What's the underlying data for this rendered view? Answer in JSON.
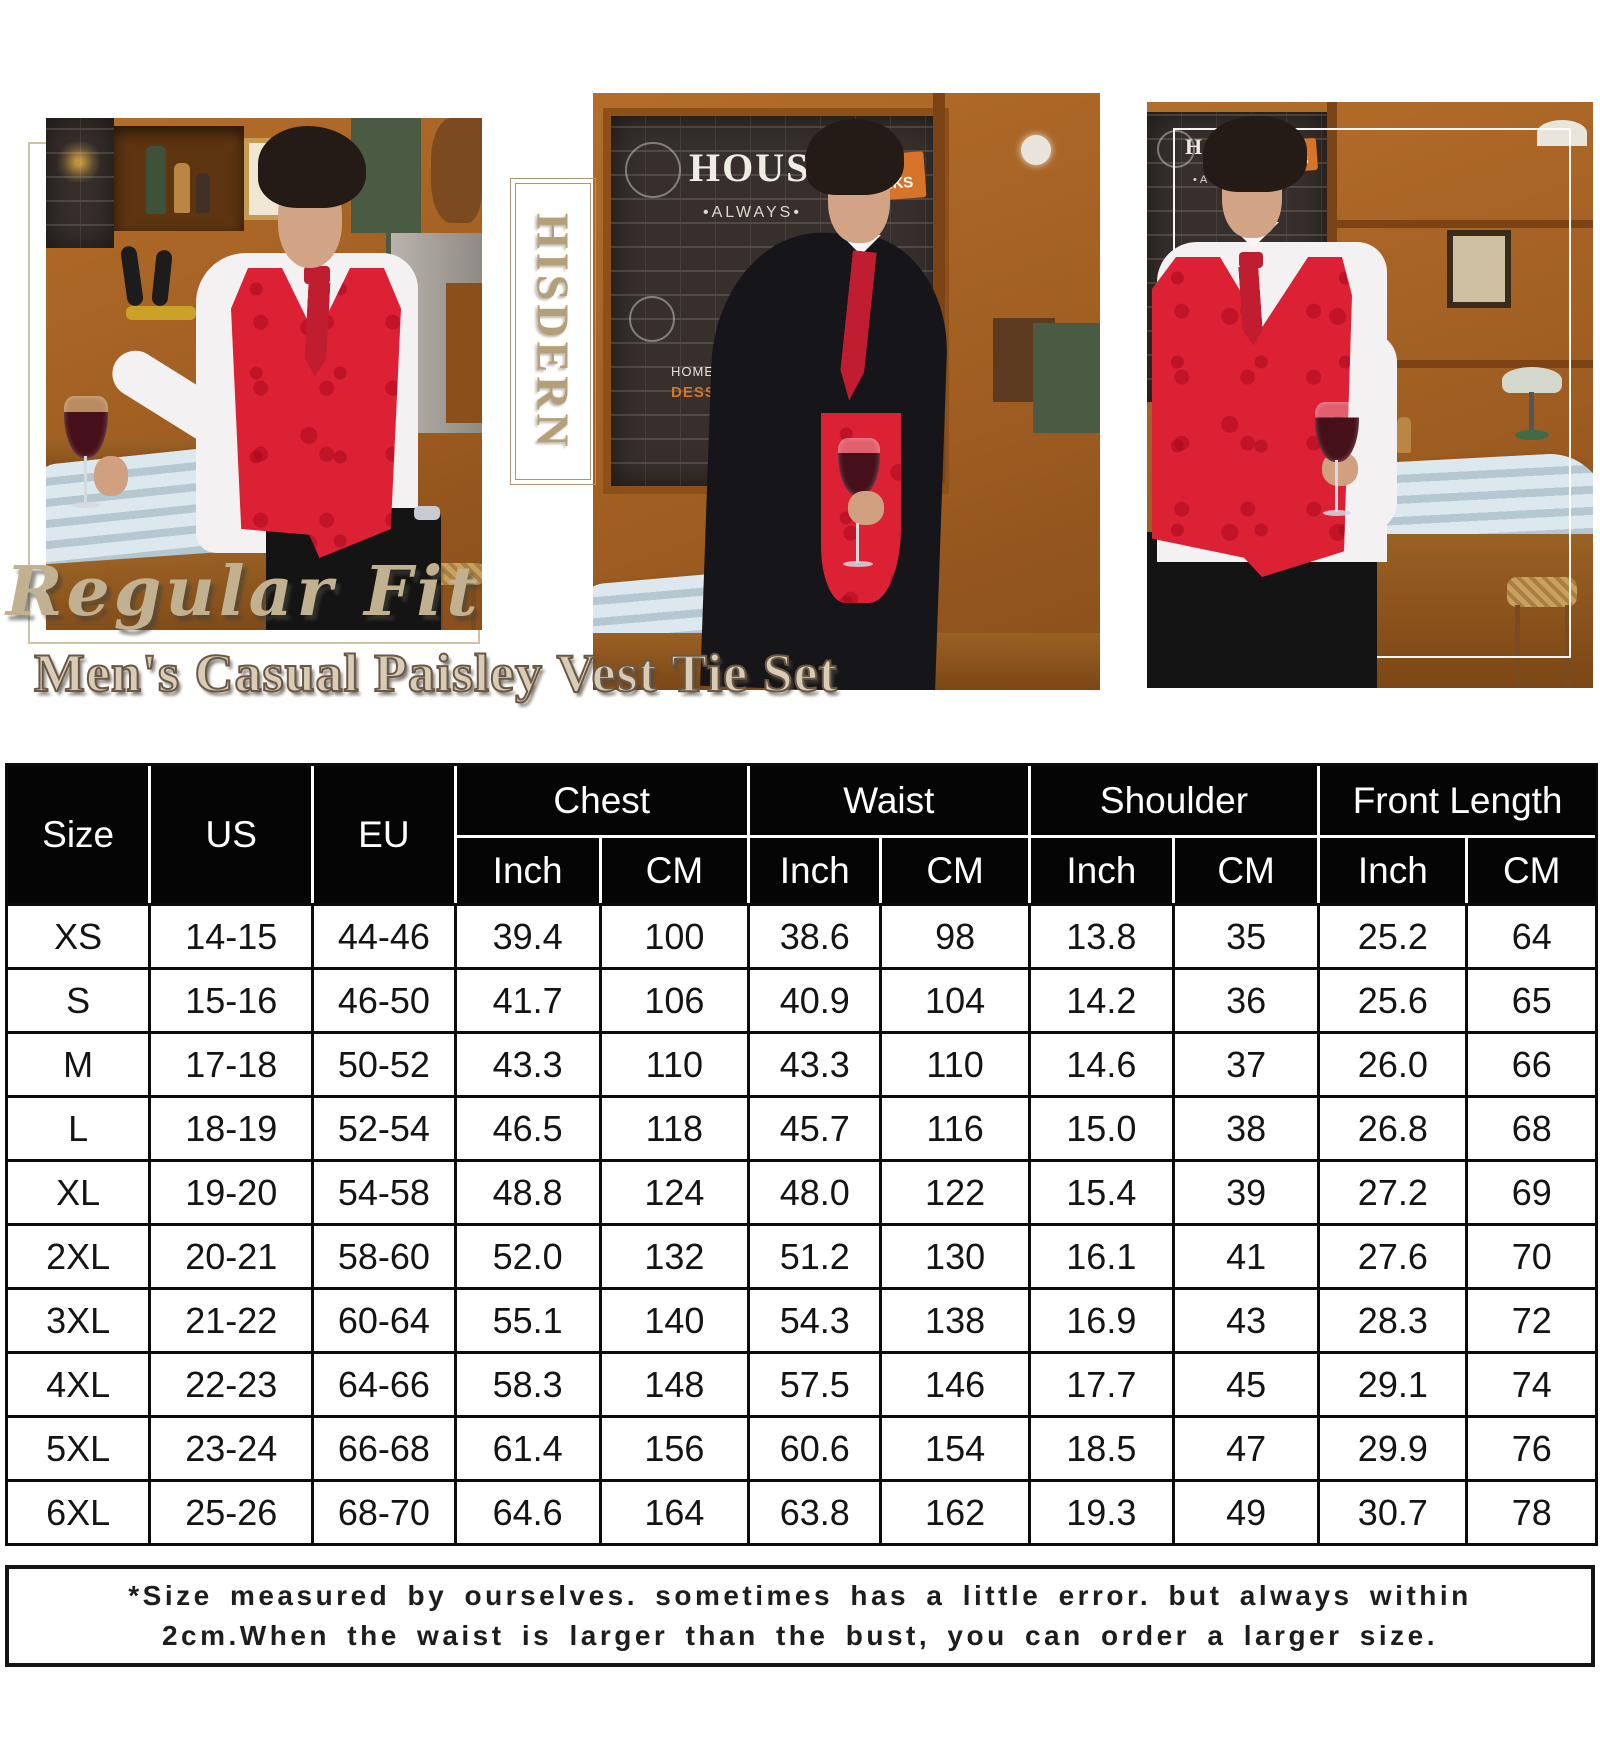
{
  "brand": {
    "name": "HISDERN"
  },
  "overlay": {
    "fit_label": "Regular Fit",
    "product_title": "Men's Casual Paisley Vest Tie Set"
  },
  "photos": {
    "chalkboard": {
      "title": "HOUSE",
      "tag": "HOT DRINKS",
      "subtitle": "•ALWAYS•",
      "menu1": "HOMEMADE",
      "menu2": "DESSERTS"
    }
  },
  "size_chart": {
    "columns": [
      "size",
      "us",
      "eu",
      "chest_in",
      "chest_cm",
      "waist_in",
      "waist_cm",
      "shoulder_in",
      "shoulder_cm",
      "front_in",
      "front_cm"
    ],
    "header": {
      "size": "Size",
      "us": "US",
      "eu": "EU",
      "groups": [
        {
          "label": "Chest"
        },
        {
          "label": "Waist"
        },
        {
          "label": "Shoulder"
        },
        {
          "label": "Front Length"
        }
      ],
      "inch": "Inch",
      "cm": "CM"
    },
    "rows": [
      {
        "size": "XS",
        "us": "14-15",
        "eu": "44-46",
        "chest_in": "39.4",
        "chest_cm": "100",
        "waist_in": "38.6",
        "waist_cm": "98",
        "shoulder_in": "13.8",
        "shoulder_cm": "35",
        "front_in": "25.2",
        "front_cm": "64"
      },
      {
        "size": "S",
        "us": "15-16",
        "eu": "46-50",
        "chest_in": "41.7",
        "chest_cm": "106",
        "waist_in": "40.9",
        "waist_cm": "104",
        "shoulder_in": "14.2",
        "shoulder_cm": "36",
        "front_in": "25.6",
        "front_cm": "65"
      },
      {
        "size": "M",
        "us": "17-18",
        "eu": "50-52",
        "chest_in": "43.3",
        "chest_cm": "110",
        "waist_in": "43.3",
        "waist_cm": "110",
        "shoulder_in": "14.6",
        "shoulder_cm": "37",
        "front_in": "26.0",
        "front_cm": "66"
      },
      {
        "size": "L",
        "us": "18-19",
        "eu": "52-54",
        "chest_in": "46.5",
        "chest_cm": "118",
        "waist_in": "45.7",
        "waist_cm": "116",
        "shoulder_in": "15.0",
        "shoulder_cm": "38",
        "front_in": "26.8",
        "front_cm": "68"
      },
      {
        "size": "XL",
        "us": "19-20",
        "eu": "54-58",
        "chest_in": "48.8",
        "chest_cm": "124",
        "waist_in": "48.0",
        "waist_cm": "122",
        "shoulder_in": "15.4",
        "shoulder_cm": "39",
        "front_in": "27.2",
        "front_cm": "69"
      },
      {
        "size": "2XL",
        "us": "20-21",
        "eu": "58-60",
        "chest_in": "52.0",
        "chest_cm": "132",
        "waist_in": "51.2",
        "waist_cm": "130",
        "shoulder_in": "16.1",
        "shoulder_cm": "41",
        "front_in": "27.6",
        "front_cm": "70"
      },
      {
        "size": "3XL",
        "us": "21-22",
        "eu": "60-64",
        "chest_in": "55.1",
        "chest_cm": "140",
        "waist_in": "54.3",
        "waist_cm": "138",
        "shoulder_in": "16.9",
        "shoulder_cm": "43",
        "front_in": "28.3",
        "front_cm": "72"
      },
      {
        "size": "4XL",
        "us": "22-23",
        "eu": "64-66",
        "chest_in": "58.3",
        "chest_cm": "148",
        "waist_in": "57.5",
        "waist_cm": "146",
        "shoulder_in": "17.7",
        "shoulder_cm": "45",
        "front_in": "29.1",
        "front_cm": "74"
      },
      {
        "size": "5XL",
        "us": "23-24",
        "eu": "66-68",
        "chest_in": "61.4",
        "chest_cm": "156",
        "waist_in": "60.6",
        "waist_cm": "154",
        "shoulder_in": "18.5",
        "shoulder_cm": "47",
        "front_in": "29.9",
        "front_cm": "76"
      },
      {
        "size": "6XL",
        "us": "25-26",
        "eu": "68-70",
        "chest_in": "64.6",
        "chest_cm": "164",
        "waist_in": "63.8",
        "waist_cm": "162",
        "shoulder_in": "19.3",
        "shoulder_cm": "49",
        "front_in": "30.7",
        "front_cm": "78"
      }
    ]
  },
  "footnote": {
    "line1": "*Size measured by ourselves. sometimes has a little error. but always within",
    "line2": "2cm.When the waist is larger than the bust, you can order a larger size."
  },
  "colors": {
    "vest_red": "#dc2134",
    "tie_red": "#c01d30",
    "gold_text": "#c2b190",
    "brand_gold": "#b49f78",
    "header_black": "#050505",
    "wood": "#a05e22",
    "ledge_blue": "#c4d4dd",
    "wall_green": "#4b5a42"
  }
}
